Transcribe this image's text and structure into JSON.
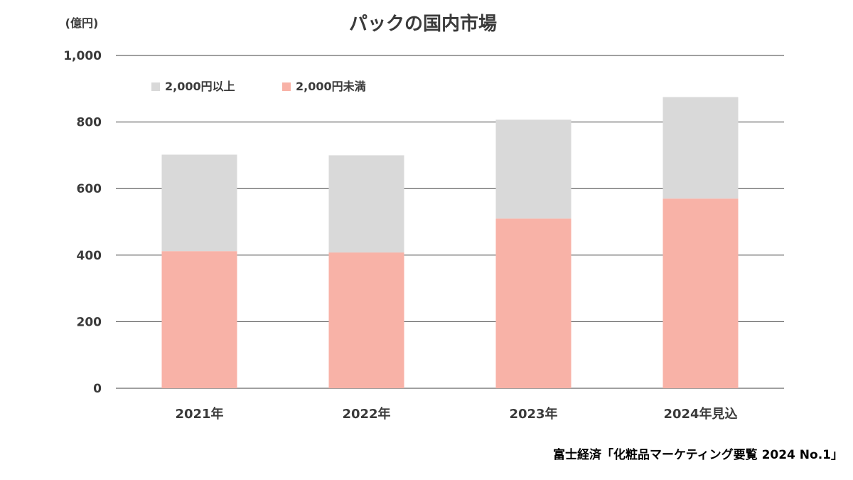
{
  "chart_data": {
    "type": "bar",
    "stacked": true,
    "title": "パックの国内市場",
    "unit_label": "(億円)",
    "categories": [
      "2021年",
      "2022年",
      "2023年",
      "2024年見込"
    ],
    "series": [
      {
        "name": "2,000円未満",
        "values": [
          412,
          408,
          510,
          570
        ],
        "color": "#f8b2a7"
      },
      {
        "name": "2,000円以上",
        "values": [
          290,
          292,
          297,
          305
        ],
        "color": "#d9d9d9"
      }
    ],
    "ylim": [
      0,
      1000
    ],
    "yticks": [
      0,
      200,
      400,
      600,
      800,
      1000
    ],
    "ytick_labels": [
      "0",
      "200",
      "400",
      "600",
      "800",
      "1,000"
    ],
    "grid": true,
    "legend_order": [
      "2,000円以上",
      "2,000円未満"
    ],
    "legend_position": "top-left"
  },
  "source": "富士経済「化粧品マーケティング要覧 2024 No.1」"
}
